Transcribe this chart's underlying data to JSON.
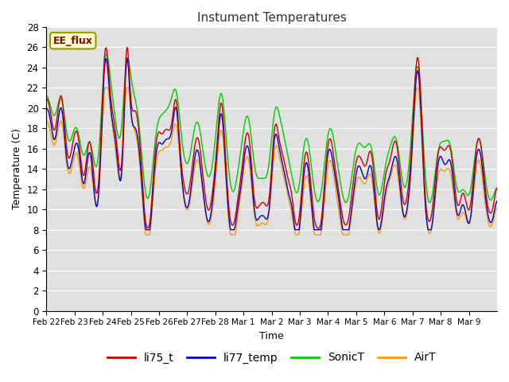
{
  "title": "Instument Temperatures",
  "xlabel": "Time",
  "ylabel": "Temperature (C)",
  "ylim": [
    0,
    28
  ],
  "annotation": "EE_flux",
  "bg_color": "#e0e0e0",
  "fig_bg": "#ffffff",
  "series_colors": {
    "li75_t": "#cc0000",
    "li77_temp": "#0000cc",
    "SonicT": "#00cc00",
    "AirT": "#ff9900"
  },
  "x_tick_labels": [
    "Feb 22",
    "Feb 23",
    "Feb 24",
    "Feb 25",
    "Feb 26",
    "Feb 27",
    "Feb 28",
    "Mar 1",
    "Mar 2",
    "Mar 3",
    "Mar 4",
    "Mar 5",
    "Mar 6",
    "Mar 7",
    "Mar 8",
    "Mar 9"
  ],
  "n_points": 800,
  "seed": 42
}
